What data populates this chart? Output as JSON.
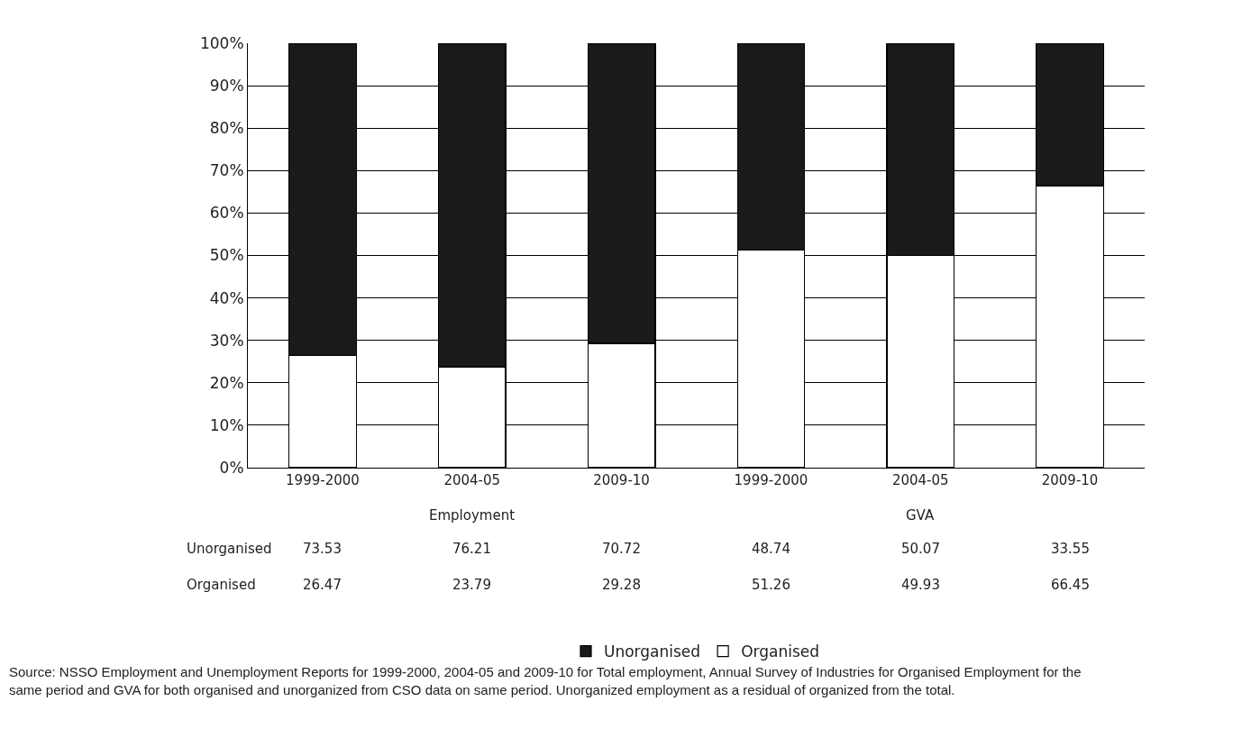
{
  "chart_data": {
    "type": "bar",
    "stacked": true,
    "categories": [
      "1999-2000",
      "2004-05",
      "2009-10",
      "1999-2000",
      "2004-05",
      "2009-10"
    ],
    "series": [
      {
        "name": "Organised",
        "color": "#ffffff",
        "values": [
          26.47,
          23.79,
          29.28,
          51.26,
          49.93,
          66.45
        ]
      },
      {
        "name": "Unorganised",
        "color": "#1a1a1a",
        "values": [
          73.53,
          76.21,
          70.72,
          48.74,
          50.07,
          33.55
        ]
      }
    ],
    "ylim": [
      0,
      100
    ],
    "yticks": [
      {
        "value": 0,
        "label": "0%"
      },
      {
        "value": 10,
        "label": "10%"
      },
      {
        "value": 20,
        "label": "20%"
      },
      {
        "value": 30,
        "label": "30%"
      },
      {
        "value": 40,
        "label": "40%"
      },
      {
        "value": 50,
        "label": "50%"
      },
      {
        "value": 60,
        "label": "60%"
      },
      {
        "value": 70,
        "label": "70%"
      },
      {
        "value": 80,
        "label": "80%"
      },
      {
        "value": 90,
        "label": "90%"
      },
      {
        "value": 100,
        "label": "100%"
      }
    ],
    "grid": "y",
    "legend": "bottom",
    "data_labels": true,
    "annotations": [
      "Employment",
      "GVA",
      "Source: NSSO Employment and Unemployment Reports for 1999-2000, 2004-05 and 2009-10 for Total employment, Annual Survey of Industries for Organised Employment for the same period and GVA for both organised and unorganized from CSO data on same period. Unorganized employment as a residual of organized from the total."
    ]
  }
}
